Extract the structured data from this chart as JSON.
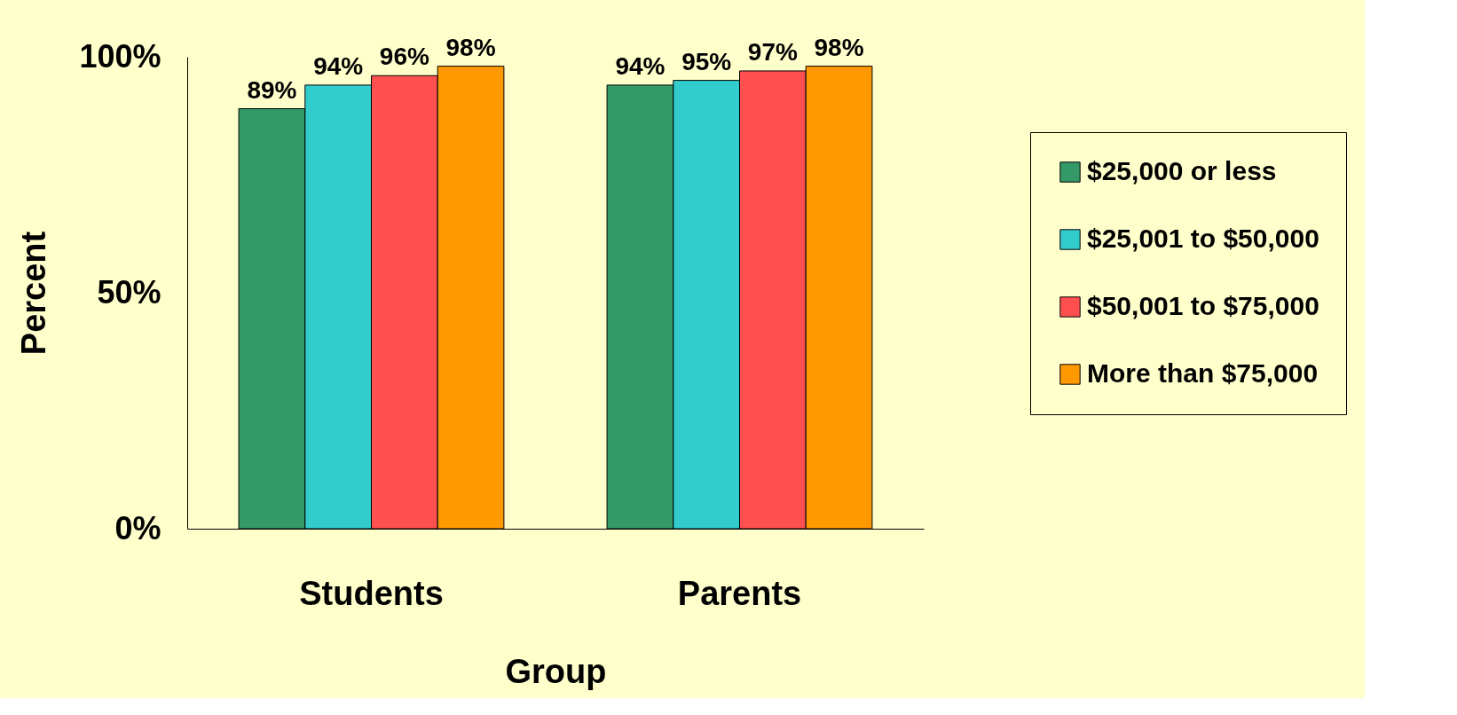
{
  "chart_data": {
    "type": "bar",
    "xlabel": "Group",
    "ylabel": "Percent",
    "categories": [
      "Students",
      "Parents"
    ],
    "series": [
      {
        "name": "$25,000 or less",
        "color": "#339966",
        "values": [
          89,
          94
        ],
        "value_labels": [
          "89%",
          "94%"
        ]
      },
      {
        "name": "$25,001 to $50,000",
        "color": "#33cccc",
        "values": [
          94,
          95
        ],
        "value_labels": [
          "94%",
          "95%"
        ]
      },
      {
        "name": "$50,001 to $75,000",
        "color": "#ff5050",
        "values": [
          96,
          97
        ],
        "value_labels": [
          "96%",
          "97%"
        ]
      },
      {
        "name": "More than $75,000",
        "color": "#ff9900",
        "values": [
          98,
          98
        ],
        "value_labels": [
          "98%",
          "98%"
        ]
      }
    ],
    "ylim": [
      0,
      100
    ],
    "yticks": [
      {
        "value": 0,
        "label": "0%"
      },
      {
        "value": 50,
        "label": "50%"
      },
      {
        "value": 100,
        "label": "100%"
      }
    ],
    "grid": false,
    "legend": "right"
  }
}
